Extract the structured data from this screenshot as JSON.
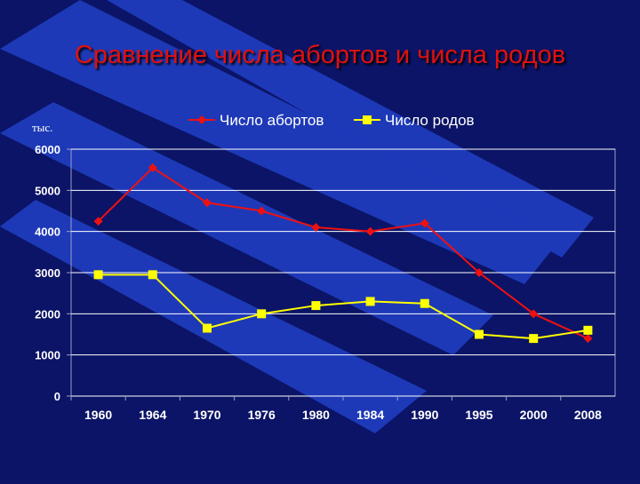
{
  "slide": {
    "title": "Сравнение числа абортов и числа родов",
    "unit_label": "тыс."
  },
  "colors": {
    "background": "#0b1466",
    "stripe": "#1d39b8",
    "abortions": "#ee1111",
    "births": "#ffff00",
    "grid": "#ffffff",
    "text": "#ffffff"
  },
  "chart_data": {
    "type": "line",
    "title": "",
    "xlabel": "",
    "ylabel": "тыс.",
    "categories": [
      "1960",
      "1964",
      "1970",
      "1976",
      "1980",
      "1984",
      "1990",
      "1995",
      "2000",
      "2008"
    ],
    "ylim": [
      0,
      6000
    ],
    "yticks": [
      "0",
      "1000",
      "2000",
      "3000",
      "4000",
      "5000",
      "6000"
    ],
    "grid": true,
    "legend_position": "top",
    "series": [
      {
        "name": "Число абортов",
        "marker": "diamond",
        "color": "#ee1111",
        "values": [
          4250,
          5550,
          4700,
          4500,
          4100,
          4000,
          4200,
          3000,
          2000,
          1400
        ]
      },
      {
        "name": "Число родов",
        "marker": "square",
        "color": "#ffff00",
        "values": [
          2950,
          2950,
          1650,
          2000,
          2200,
          2300,
          2250,
          1500,
          1400,
          1600
        ]
      }
    ]
  }
}
